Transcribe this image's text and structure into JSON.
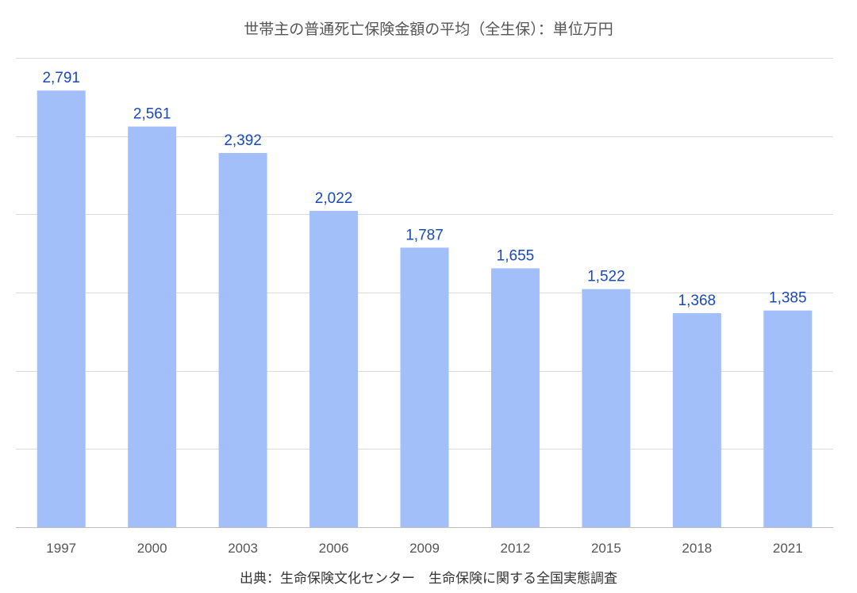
{
  "chart_data": {
    "type": "bar",
    "title": "世帯主の普通死亡保険金額の平均（全生保）：単位万円",
    "source": "出典：生命保険文化センター　生命保険に関する全国実態調査",
    "categories": [
      "1997",
      "2000",
      "2003",
      "2006",
      "2009",
      "2012",
      "2015",
      "2018",
      "2021"
    ],
    "values": [
      2791,
      2561,
      2392,
      2022,
      1787,
      1655,
      1522,
      1368,
      1385
    ],
    "value_labels": [
      "2,791",
      "2,561",
      "2,392",
      "2,022",
      "1,787",
      "1,655",
      "1,522",
      "1,368",
      "1,385"
    ],
    "ylim": [
      0,
      3000
    ],
    "ytick_step": 500,
    "grid": true,
    "bar_color": "#a3bff9",
    "label_color": "#1a49b8"
  }
}
